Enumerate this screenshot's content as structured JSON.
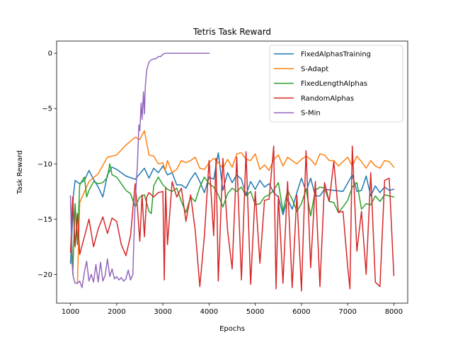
{
  "chart_data": {
    "type": "line",
    "title": "Tetris Task Reward",
    "xlabel": "Epochs",
    "ylabel": "Task Reward",
    "xlim": [
      700,
      8300
    ],
    "ylim": [
      -22.6,
      1.1
    ],
    "xticks": [
      1000,
      2000,
      3000,
      4000,
      5000,
      6000,
      7000,
      8000
    ],
    "yticks": [
      0,
      -5,
      -10,
      -15,
      -20
    ],
    "grid": false,
    "legend_position": "top-right",
    "series": [
      {
        "name": "FixedAlphasTraining",
        "color": "#1f77b4",
        "x": [
          1000,
          1030,
          1060,
          1100,
          1200,
          1300,
          1400,
          1500,
          1600,
          1700,
          1800,
          1900,
          2000,
          2200,
          2400,
          2500,
          2600,
          2700,
          2800,
          2900,
          3000,
          3100,
          3200,
          3300,
          3400,
          3500,
          3600,
          3700,
          3800,
          3900,
          4000,
          4100,
          4200,
          4300,
          4400,
          4500,
          4600,
          4700,
          4800,
          4900,
          5000,
          5100,
          5200,
          5300,
          5400,
          5500,
          5600,
          5700,
          5800,
          5900,
          6000,
          6100,
          6200,
          6300,
          6400,
          6500,
          6700,
          6900,
          7100,
          7200,
          7300,
          7400,
          7500,
          7600,
          7700,
          7800,
          7900,
          8000
        ],
        "values": [
          -19.0,
          -16.5,
          -13.0,
          -11.5,
          -11.8,
          -11.5,
          -10.6,
          -11.4,
          -12.1,
          -13.0,
          -11.0,
          -10.3,
          -10.5,
          -11.1,
          -11.4,
          -10.9,
          -10.4,
          -11.3,
          -10.4,
          -10.8,
          -10.2,
          -11.0,
          -10.8,
          -11.9,
          -11.9,
          -12.2,
          -11.4,
          -10.8,
          -11.6,
          -12.6,
          -11.2,
          -11.4,
          -9.0,
          -12.4,
          -10.8,
          -11.7,
          -11.0,
          -11.4,
          -12.8,
          -11.6,
          -12.3,
          -11.5,
          -12.1,
          -11.8,
          -12.6,
          -13.0,
          -14.6,
          -13.2,
          -14.1,
          -12.6,
          -11.3,
          -12.5,
          -11.3,
          -12.9,
          -12.9,
          -12.3,
          -12.4,
          -12.5,
          -11.0,
          -12.5,
          -12.4,
          -11.1,
          -12.9,
          -12.0,
          -12.6,
          -12.1,
          -12.4,
          -12.3
        ]
      },
      {
        "name": "S-Adapt",
        "color": "#ff7f0e",
        "x": [
          1150,
          1200,
          1400,
          1600,
          1800,
          2000,
          2200,
          2400,
          2500,
          2600,
          2700,
          2800,
          2900,
          3000,
          3050,
          3100,
          3200,
          3300,
          3400,
          3500,
          3600,
          3700,
          3800,
          3900,
          4000,
          4100,
          4200,
          4300,
          4400,
          4500,
          4600,
          4700,
          4800,
          4900,
          5000,
          5100,
          5200,
          5300,
          5400,
          5500,
          5600,
          5700,
          5800,
          5900,
          6000,
          6100,
          6200,
          6300,
          6400,
          6500,
          6600,
          6700,
          6800,
          6900,
          7000,
          7100,
          7200,
          7300,
          7400,
          7500,
          7600,
          7700,
          7800,
          7900,
          8000
        ],
        "values": [
          -20.8,
          -13.5,
          -11.6,
          -10.9,
          -9.4,
          -9.2,
          -8.3,
          -7.6,
          -7.8,
          -7.0,
          -9.2,
          -9.3,
          -10.0,
          -9.9,
          -10.6,
          -9.7,
          -10.8,
          -10.5,
          -9.7,
          -9.9,
          -9.7,
          -9.4,
          -10.4,
          -10.5,
          -9.9,
          -9.5,
          -9.9,
          -10.4,
          -9.6,
          -10.3,
          -9.1,
          -9.0,
          -9.6,
          -9.7,
          -9.1,
          -10.5,
          -10.1,
          -10.6,
          -9.6,
          -9.2,
          -10.2,
          -9.4,
          -9.7,
          -10.0,
          -9.6,
          -9.3,
          -9.6,
          -10.1,
          -9.1,
          -9.2,
          -9.7,
          -9.7,
          -10.2,
          -9.8,
          -9.4,
          -10.2,
          -9.3,
          -9.8,
          -10.4,
          -9.7,
          -10.2,
          -10.4,
          -9.7,
          -9.8,
          -10.3
        ]
      },
      {
        "name": "FixedLengthAlphas",
        "color": "#2ca02c",
        "x": [
          1000,
          1050,
          1100,
          1150,
          1200,
          1300,
          1350,
          1400,
          1500,
          1600,
          1700,
          1800,
          1850,
          1900,
          2000,
          2100,
          2200,
          2300,
          2400,
          2500,
          2600,
          2700,
          2750,
          2800,
          2900,
          3000,
          3100,
          3200,
          3300,
          3400,
          3500,
          3600,
          3700,
          3800,
          3900,
          4000,
          4100,
          4200,
          4300,
          4400,
          4500,
          4600,
          4700,
          4800,
          4900,
          5000,
          5100,
          5200,
          5300,
          5400,
          5500,
          5600,
          5700,
          5800,
          5900,
          6000,
          6100,
          6200,
          6300,
          6400,
          6500,
          6600,
          6700,
          6800,
          6900,
          7000,
          7100,
          7200,
          7300,
          7400,
          7500,
          7600,
          7700,
          7800,
          7900,
          8000
        ],
        "values": [
          -13.0,
          -20.0,
          -13.6,
          -17.3,
          -11.9,
          -11.2,
          -13.0,
          -12.4,
          -11.6,
          -11.8,
          -11.7,
          -11.2,
          -10.0,
          -11.0,
          -11.2,
          -11.8,
          -12.4,
          -12.7,
          -13.9,
          -13.0,
          -12.8,
          -14.3,
          -14.5,
          -12.0,
          -11.2,
          -11.9,
          -12.3,
          -12.5,
          -12.2,
          -13.4,
          -14.4,
          -13.0,
          -13.4,
          -12.1,
          -11.2,
          -11.8,
          -12.1,
          -12.8,
          -13.9,
          -12.7,
          -12.2,
          -12.5,
          -12.1,
          -12.9,
          -12.5,
          -13.7,
          -13.6,
          -13.0,
          -12.8,
          -12.4,
          -11.7,
          -14.3,
          -12.4,
          -13.2,
          -14.3,
          -13.6,
          -12.3,
          -14.7,
          -12.4,
          -12.1,
          -12.2,
          -13.4,
          -13.5,
          -14.4,
          -13.9,
          -13.3,
          -12.1,
          -11.7,
          -14.1,
          -13.6,
          -13.7,
          -12.9,
          -13.4,
          -12.8,
          -12.9,
          -13.0
        ]
      },
      {
        "name": "RandomAlphas",
        "color": "#d62728",
        "x": [
          1000,
          1050,
          1100,
          1150,
          1200,
          1300,
          1400,
          1500,
          1600,
          1700,
          1800,
          1900,
          2000,
          2100,
          2200,
          2300,
          2400,
          2450,
          2500,
          2550,
          2600,
          2650,
          2700,
          2800,
          2900,
          3000,
          3030,
          3060,
          3100,
          3200,
          3300,
          3400,
          3500,
          3600,
          3700,
          3800,
          3900,
          4000,
          4100,
          4150,
          4200,
          4300,
          4400,
          4500,
          4600,
          4700,
          4800,
          4900,
          5000,
          5100,
          5200,
          5300,
          5400,
          5450,
          5500,
          5600,
          5700,
          5800,
          5900,
          6000,
          6100,
          6200,
          6300,
          6400,
          6500,
          6600,
          6700,
          6800,
          6900,
          7000,
          7050,
          7100,
          7200,
          7300,
          7400,
          7500,
          7600,
          7700,
          7800,
          7900,
          8000
        ],
        "values": [
          -18.0,
          -13.0,
          -17.5,
          -14.5,
          -18.2,
          -16.6,
          -15.0,
          -17.5,
          -15.9,
          -14.8,
          -16.3,
          -14.9,
          -15.2,
          -17.3,
          -18.3,
          -16.5,
          -11.8,
          -14.0,
          -17.0,
          -12.8,
          -16.6,
          -13.0,
          -12.6,
          -13.0,
          -12.6,
          -12.5,
          -20.5,
          -12.2,
          -17.3,
          -11.6,
          -13.0,
          -12.2,
          -15.2,
          -12.8,
          -16.0,
          -21.1,
          -16.5,
          -9.7,
          -16.5,
          -9.5,
          -20.6,
          -9.5,
          -16.0,
          -19.5,
          -9.4,
          -20.5,
          -8.9,
          -20.9,
          -12.5,
          -19.0,
          -13.3,
          -13.2,
          -8.4,
          -21.3,
          -12.9,
          -20.8,
          -11.6,
          -21.2,
          -12.8,
          -21.5,
          -8.8,
          -19.4,
          -11.6,
          -21.1,
          -11.7,
          -13.4,
          -9.8,
          -14.4,
          -14.3,
          -19.3,
          -21.3,
          -8.4,
          -17.9,
          -14.3,
          -20.0,
          -10.8,
          -20.7,
          -21.1,
          -11.5,
          -11.3,
          -20.1
        ]
      },
      {
        "name": "S-Min",
        "color": "#9467bd",
        "x": [
          1000,
          1030,
          1060,
          1100,
          1150,
          1200,
          1250,
          1300,
          1350,
          1400,
          1450,
          1500,
          1550,
          1600,
          1650,
          1700,
          1750,
          1800,
          1850,
          1900,
          1950,
          2000,
          2050,
          2100,
          2150,
          2200,
          2250,
          2300,
          2350,
          2380,
          2400,
          2450,
          2480,
          2500,
          2530,
          2550,
          2580,
          2600,
          2620,
          2650,
          2700,
          2750,
          2800,
          2850,
          2900,
          2950,
          3000,
          3050,
          3200,
          3400,
          3600,
          3800,
          4000
        ],
        "values": [
          -12.9,
          -18.8,
          -20.2,
          -20.8,
          -20.8,
          -20.6,
          -21.2,
          -19.8,
          -18.8,
          -20.6,
          -20.0,
          -20.7,
          -19.1,
          -20.7,
          -18.9,
          -20.6,
          -20.1,
          -18.6,
          -20.2,
          -19.5,
          -20.4,
          -20.2,
          -20.5,
          -20.3,
          -20.6,
          -20.4,
          -19.6,
          -20.5,
          -20.0,
          -16.0,
          -13.5,
          -10.0,
          -6.5,
          -7.0,
          -4.5,
          -6.0,
          -3.5,
          -5.5,
          -3.0,
          -1.5,
          -0.8,
          -0.6,
          -0.5,
          -0.5,
          -0.3,
          -0.3,
          -0.1,
          0.0,
          0.0,
          0.0,
          0.0,
          0.0,
          0.0
        ]
      }
    ]
  }
}
